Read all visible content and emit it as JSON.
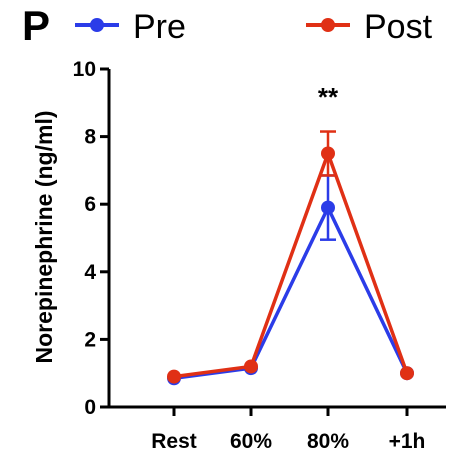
{
  "panel_label": "P",
  "chart_data": {
    "type": "line",
    "categories": [
      "Rest",
      "60%",
      "80%",
      "+1h"
    ],
    "ylabel": "Norepinephrine (ng/ml)",
    "xlabel": "",
    "ylim": [
      0,
      10
    ],
    "yticks": [
      0,
      2,
      4,
      6,
      8,
      10
    ],
    "grid": false,
    "legend_position": "top",
    "series": [
      {
        "name": "Pre",
        "color": "#2b3ce8",
        "values": [
          0.85,
          1.15,
          5.9,
          1.0
        ],
        "error": [
          0.05,
          0.06,
          0.95,
          0.05
        ]
      },
      {
        "name": "Post",
        "color": "#e03015",
        "values": [
          0.9,
          1.2,
          7.5,
          1.0
        ],
        "error": [
          0.06,
          0.07,
          0.65,
          0.06
        ]
      }
    ],
    "annotations": [
      {
        "text": "**",
        "category": "80%"
      }
    ]
  }
}
